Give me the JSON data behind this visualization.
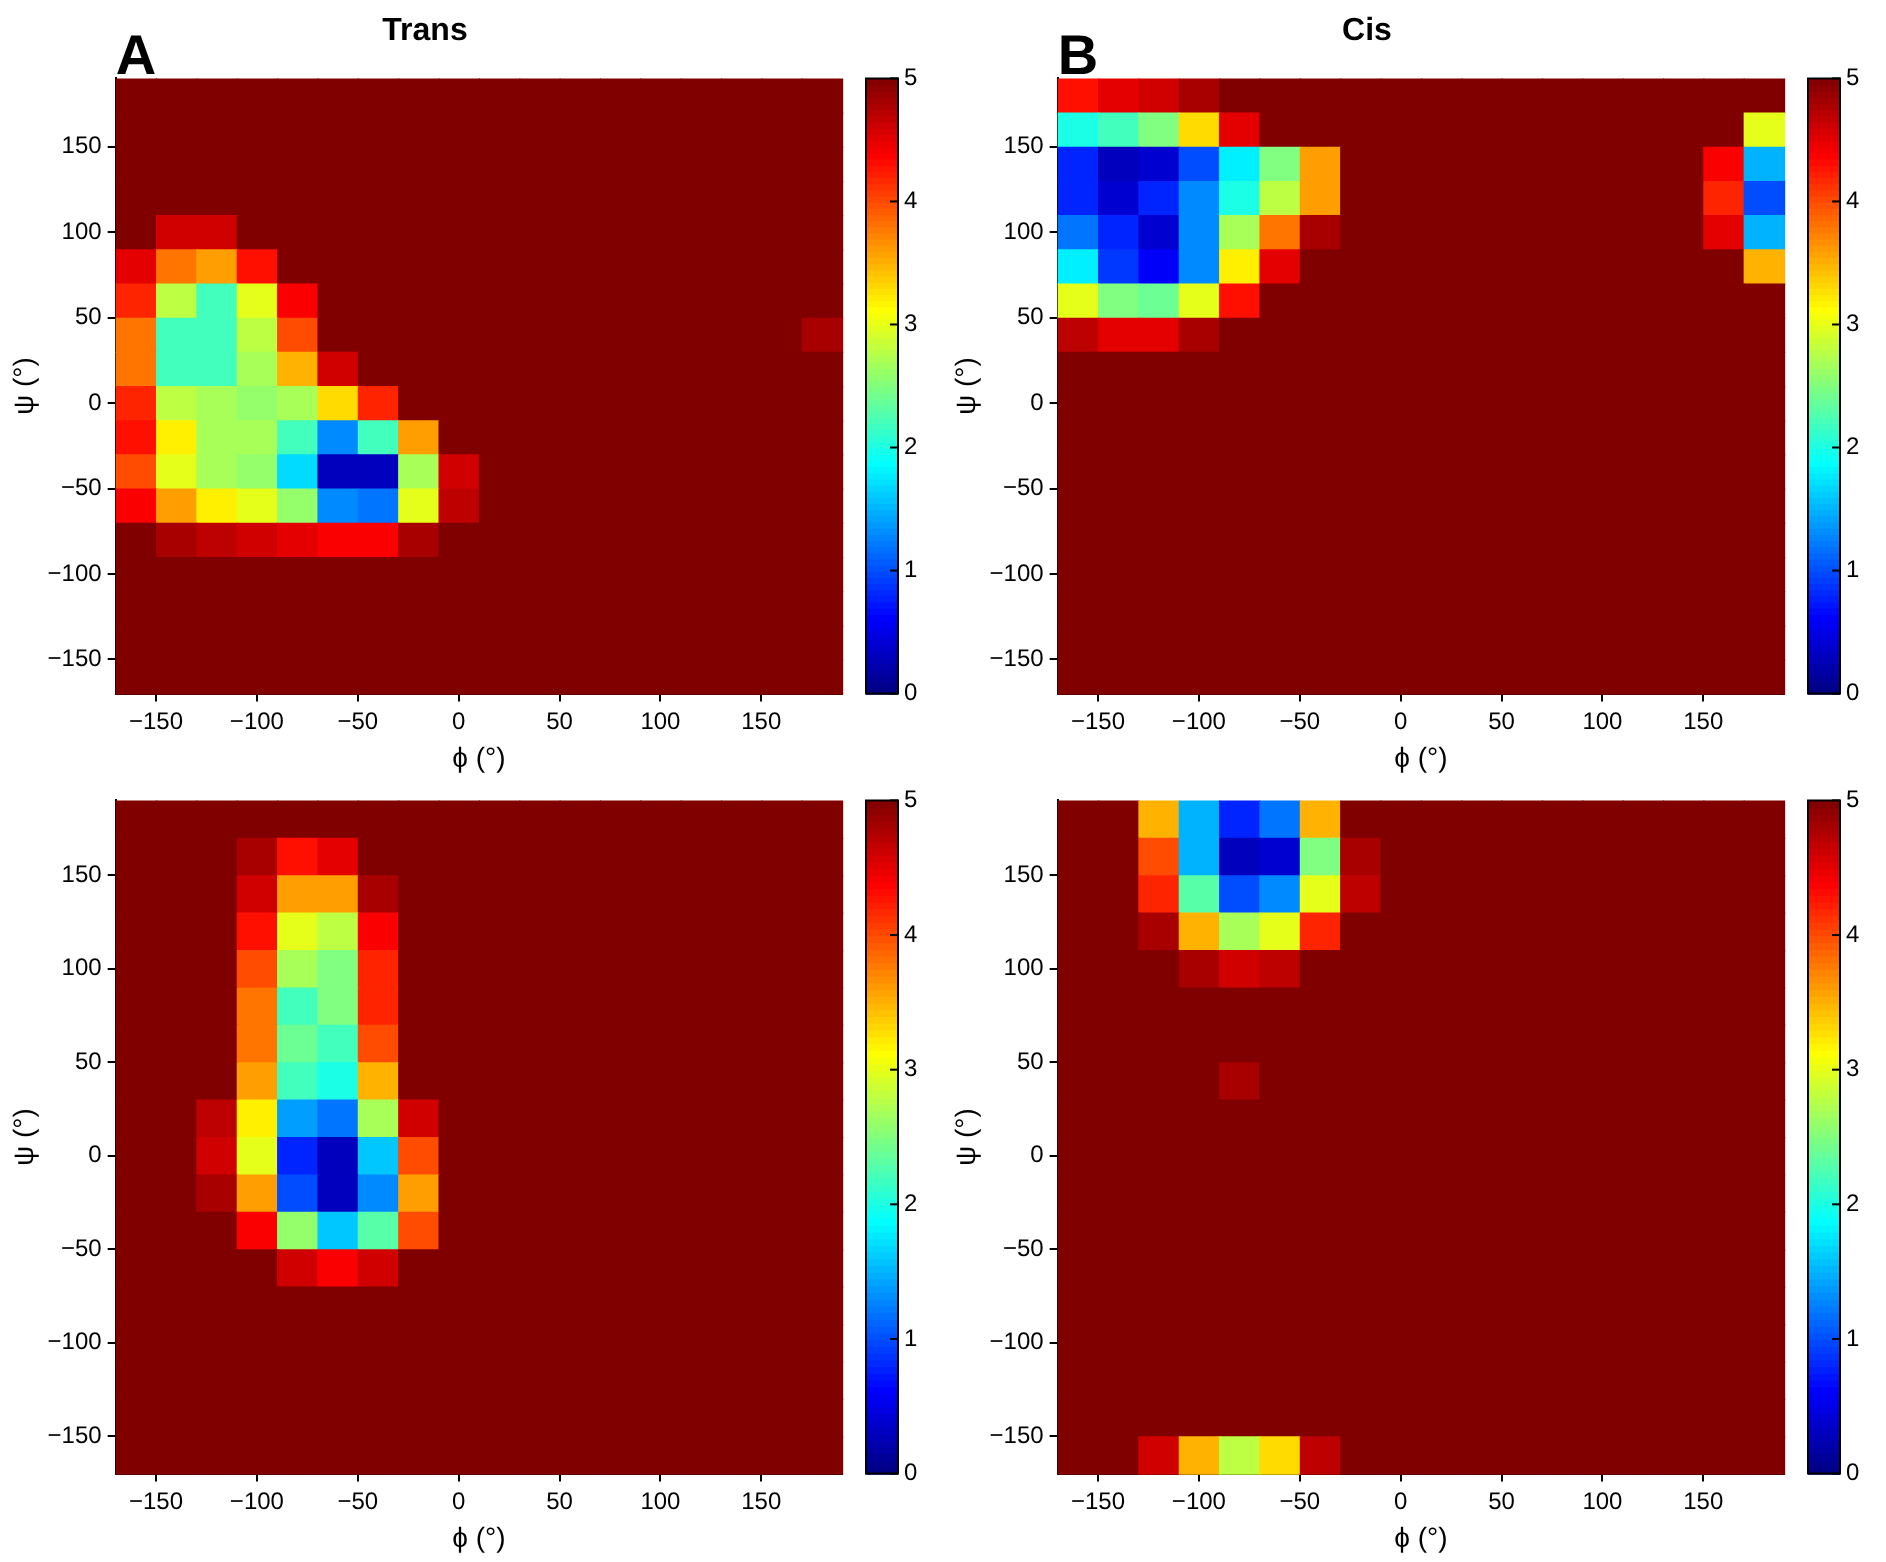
{
  "chart_data": [
    {
      "type": "heatmap",
      "title": "Trans",
      "xlabel": "ϕ (°)",
      "ylabel": "ψ (°)",
      "annotations": [
        "A"
      ],
      "x": [
        -160,
        -140,
        -120,
        -100,
        -80,
        -60,
        -40,
        -20,
        0,
        20,
        40,
        60,
        80,
        100,
        120,
        140,
        160,
        180
      ],
      "y": [
        180,
        160,
        140,
        120,
        100,
        80,
        60,
        40,
        20,
        0,
        -20,
        -40,
        -60,
        -80,
        -100,
        -120,
        -140,
        -160
      ],
      "xlim": [
        -170,
        190
      ],
      "ylim": [
        -170,
        190
      ],
      "xticks": [
        -150,
        -100,
        -50,
        0,
        50,
        100,
        150
      ],
      "yticks": [
        -150,
        -100,
        -50,
        0,
        50,
        100,
        150
      ],
      "clim": [
        0,
        5
      ],
      "cticks": [
        0,
        1,
        2,
        3,
        4,
        5
      ],
      "cells": [
        [
          5,
          5,
          5,
          5,
          5,
          5,
          5,
          5,
          5,
          5,
          5,
          5,
          5,
          5,
          5,
          5,
          5,
          5
        ],
        [
          5,
          5,
          5,
          5,
          5,
          5,
          5,
          5,
          5,
          5,
          5,
          5,
          5,
          5,
          5,
          5,
          5,
          5
        ],
        [
          5,
          5,
          5,
          5,
          5,
          5,
          5,
          5,
          5,
          5,
          5,
          5,
          5,
          5,
          5,
          5,
          5,
          5
        ],
        [
          5,
          5,
          5,
          5,
          5,
          5,
          5,
          5,
          5,
          5,
          5,
          5,
          5,
          5,
          5,
          5,
          5,
          5
        ],
        [
          5,
          4.6,
          4.6,
          5,
          5,
          5,
          5,
          5,
          5,
          5,
          5,
          5,
          5,
          5,
          5,
          5,
          5,
          5
        ],
        [
          4.5,
          3.8,
          3.6,
          4.3,
          5,
          5,
          5,
          5,
          5,
          5,
          5,
          5,
          5,
          5,
          5,
          5,
          5,
          5
        ],
        [
          4.2,
          2.8,
          2.2,
          3,
          4.4,
          5,
          5,
          5,
          5,
          5,
          5,
          5,
          5,
          5,
          5,
          5,
          5,
          5
        ],
        [
          3.8,
          2.2,
          2.2,
          2.8,
          4,
          5,
          5,
          5,
          5,
          5,
          5,
          5,
          5,
          5,
          5,
          5,
          5,
          4.8
        ],
        [
          3.8,
          2.2,
          2.2,
          2.7,
          3.5,
          4.6,
          5,
          5,
          5,
          5,
          5,
          5,
          5,
          5,
          5,
          5,
          5,
          5
        ],
        [
          4.2,
          2.8,
          2.7,
          2.6,
          2.7,
          3.3,
          4.2,
          5,
          5,
          5,
          5,
          5,
          5,
          5,
          5,
          5,
          5,
          5
        ],
        [
          4.3,
          3.2,
          2.7,
          2.7,
          2.2,
          1.3,
          2.2,
          3.6,
          5,
          5,
          5,
          5,
          5,
          5,
          5,
          5,
          5,
          5
        ],
        [
          4,
          3,
          2.7,
          2.6,
          1.7,
          0.3,
          0.3,
          2.7,
          4.6,
          5,
          5,
          5,
          5,
          5,
          5,
          5,
          5,
          5
        ],
        [
          4.4,
          3.6,
          3.2,
          3,
          2.6,
          1.3,
          1.2,
          3,
          4.7,
          5,
          5,
          5,
          5,
          5,
          5,
          5,
          5,
          5
        ],
        [
          5,
          4.8,
          4.7,
          4.6,
          4.5,
          4.4,
          4.4,
          4.8,
          5,
          5,
          5,
          5,
          5,
          5,
          5,
          5,
          5,
          5
        ],
        [
          5,
          5,
          5,
          5,
          5,
          5,
          5,
          5,
          5,
          5,
          5,
          5,
          5,
          5,
          5,
          5,
          5,
          5
        ],
        [
          5,
          5,
          5,
          5,
          5,
          5,
          5,
          5,
          5,
          5,
          5,
          5,
          5,
          5,
          5,
          5,
          5,
          5
        ],
        [
          5,
          5,
          5,
          5,
          5,
          5,
          5,
          5,
          5,
          5,
          5,
          5,
          5,
          5,
          5,
          5,
          5,
          5
        ],
        [
          5,
          5,
          5,
          5,
          5,
          5,
          5,
          5,
          5,
          5,
          5,
          5,
          5,
          5,
          5,
          5,
          5,
          5
        ]
      ]
    },
    {
      "type": "heatmap",
      "title": "Cis",
      "xlabel": "ϕ (°)",
      "ylabel": "ψ (°)",
      "annotations": [
        "B"
      ],
      "x": [
        -160,
        -140,
        -120,
        -100,
        -80,
        -60,
        -40,
        -20,
        0,
        20,
        40,
        60,
        80,
        100,
        120,
        140,
        160,
        180
      ],
      "y": [
        180,
        160,
        140,
        120,
        100,
        80,
        60,
        40,
        20,
        0,
        -20,
        -40,
        -60,
        -80,
        -100,
        -120,
        -140,
        -160
      ],
      "xlim": [
        -170,
        190
      ],
      "ylim": [
        -170,
        190
      ],
      "xticks": [
        -150,
        -100,
        -50,
        0,
        50,
        100,
        150
      ],
      "yticks": [
        -150,
        -100,
        -50,
        0,
        50,
        100,
        150
      ],
      "clim": [
        0,
        5
      ],
      "cticks": [
        0,
        1,
        2,
        3,
        4,
        5
      ],
      "cells": [
        [
          4.3,
          4.5,
          4.6,
          4.8,
          5,
          5,
          5,
          5,
          5,
          5,
          5,
          5,
          5,
          5,
          5,
          5,
          5,
          5
        ],
        [
          2,
          2.2,
          2.5,
          3.3,
          4.5,
          5,
          5,
          5,
          5,
          5,
          5,
          5,
          5,
          5,
          5,
          5,
          5,
          3
        ],
        [
          0.8,
          0.3,
          0.4,
          1,
          1.8,
          2.5,
          3.6,
          5,
          5,
          5,
          5,
          5,
          5,
          5,
          5,
          5,
          4.4,
          1.5
        ],
        [
          0.8,
          0.4,
          0.8,
          1.3,
          2,
          2.8,
          3.6,
          5,
          5,
          5,
          5,
          5,
          5,
          5,
          5,
          5,
          4.2,
          1
        ],
        [
          1.2,
          0.8,
          0.4,
          1.3,
          2.7,
          3.8,
          4.8,
          5,
          5,
          5,
          5,
          5,
          5,
          5,
          5,
          5,
          4.5,
          1.5
        ],
        [
          1.8,
          0.9,
          0.6,
          1.3,
          3.2,
          4.5,
          5,
          5,
          5,
          5,
          5,
          5,
          5,
          5,
          5,
          5,
          5,
          3.5
        ],
        [
          3,
          2.5,
          2.4,
          3,
          4.3,
          5,
          5,
          5,
          5,
          5,
          5,
          5,
          5,
          5,
          5,
          5,
          5,
          5
        ],
        [
          4.7,
          4.5,
          4.5,
          4.8,
          5,
          5,
          5,
          5,
          5,
          5,
          5,
          5,
          5,
          5,
          5,
          5,
          5,
          5
        ],
        [
          5,
          5,
          5,
          5,
          5,
          5,
          5,
          5,
          5,
          5,
          5,
          5,
          5,
          5,
          5,
          5,
          5,
          5
        ],
        [
          5,
          5,
          5,
          5,
          5,
          5,
          5,
          5,
          5,
          5,
          5,
          5,
          5,
          5,
          5,
          5,
          5,
          5
        ],
        [
          5,
          5,
          5,
          5,
          5,
          5,
          5,
          5,
          5,
          5,
          5,
          5,
          5,
          5,
          5,
          5,
          5,
          5
        ],
        [
          5,
          5,
          5,
          5,
          5,
          5,
          5,
          5,
          5,
          5,
          5,
          5,
          5,
          5,
          5,
          5,
          5,
          5
        ],
        [
          5,
          5,
          5,
          5,
          5,
          5,
          5,
          5,
          5,
          5,
          5,
          5,
          5,
          5,
          5,
          5,
          5,
          5
        ],
        [
          5,
          5,
          5,
          5,
          5,
          5,
          5,
          5,
          5,
          5,
          5,
          5,
          5,
          5,
          5,
          5,
          5,
          5
        ],
        [
          5,
          5,
          5,
          5,
          5,
          5,
          5,
          5,
          5,
          5,
          5,
          5,
          5,
          5,
          5,
          5,
          5,
          5
        ],
        [
          5,
          5,
          5,
          5,
          5,
          5,
          5,
          5,
          5,
          5,
          5,
          5,
          5,
          5,
          5,
          5,
          5,
          5
        ],
        [
          5,
          5,
          5,
          5,
          5,
          5,
          5,
          5,
          5,
          5,
          5,
          5,
          5,
          5,
          5,
          5,
          5,
          5
        ],
        [
          5,
          5,
          5,
          5,
          5,
          5,
          5,
          5,
          5,
          5,
          5,
          5,
          5,
          5,
          5,
          5,
          5,
          5
        ]
      ]
    },
    {
      "type": "heatmap",
      "xlabel": "ϕ (°)",
      "ylabel": "ψ (°)",
      "x": [
        -160,
        -140,
        -120,
        -100,
        -80,
        -60,
        -40,
        -20,
        0,
        20,
        40,
        60,
        80,
        100,
        120,
        140,
        160,
        180
      ],
      "y": [
        180,
        160,
        140,
        120,
        100,
        80,
        60,
        40,
        20,
        0,
        -20,
        -40,
        -60,
        -80,
        -100,
        -120,
        -140,
        -160
      ],
      "xlim": [
        -170,
        190
      ],
      "ylim": [
        -170,
        190
      ],
      "xticks": [
        -150,
        -100,
        -50,
        0,
        50,
        100,
        150
      ],
      "yticks": [
        -150,
        -100,
        -50,
        0,
        50,
        100,
        150
      ],
      "clim": [
        0,
        5
      ],
      "cticks": [
        0,
        1,
        2,
        3,
        4,
        5
      ],
      "cells": [
        [
          5,
          5,
          5,
          5,
          5,
          5,
          5,
          5,
          5,
          5,
          5,
          5,
          5,
          5,
          5,
          5,
          5,
          5
        ],
        [
          5,
          5,
          5,
          4.8,
          4.3,
          4.5,
          5,
          5,
          5,
          5,
          5,
          5,
          5,
          5,
          5,
          5,
          5,
          5
        ],
        [
          5,
          5,
          5,
          4.6,
          3.6,
          3.6,
          4.8,
          5,
          5,
          5,
          5,
          5,
          5,
          5,
          5,
          5,
          5,
          5
        ],
        [
          5,
          5,
          5,
          4.3,
          3,
          2.8,
          4.4,
          5,
          5,
          5,
          5,
          5,
          5,
          5,
          5,
          5,
          5,
          5
        ],
        [
          5,
          5,
          5,
          4,
          2.7,
          2.5,
          4.2,
          5,
          5,
          5,
          5,
          5,
          5,
          5,
          5,
          5,
          5,
          5
        ],
        [
          5,
          5,
          5,
          3.8,
          2.2,
          2.5,
          4.2,
          5,
          5,
          5,
          5,
          5,
          5,
          5,
          5,
          5,
          5,
          5
        ],
        [
          5,
          5,
          5,
          3.8,
          2.4,
          2.2,
          4,
          5,
          5,
          5,
          5,
          5,
          5,
          5,
          5,
          5,
          5,
          5
        ],
        [
          5,
          5,
          5,
          3.6,
          2.2,
          2,
          3.5,
          5,
          5,
          5,
          5,
          5,
          5,
          5,
          5,
          5,
          5,
          5
        ],
        [
          5,
          5,
          4.7,
          3.2,
          1.4,
          1.2,
          2.7,
          4.6,
          5,
          5,
          5,
          5,
          5,
          5,
          5,
          5,
          5,
          5
        ],
        [
          5,
          5,
          4.6,
          3,
          0.8,
          0.3,
          1.6,
          4,
          5,
          5,
          5,
          5,
          5,
          5,
          5,
          5,
          5,
          5
        ],
        [
          5,
          5,
          4.8,
          3.6,
          1,
          0.3,
          1.3,
          3.6,
          5,
          5,
          5,
          5,
          5,
          5,
          5,
          5,
          5,
          5
        ],
        [
          5,
          5,
          5,
          4.4,
          2.6,
          1.6,
          2.3,
          4,
          5,
          5,
          5,
          5,
          5,
          5,
          5,
          5,
          5,
          5
        ],
        [
          5,
          5,
          5,
          5,
          4.6,
          4.4,
          4.6,
          5,
          5,
          5,
          5,
          5,
          5,
          5,
          5,
          5,
          5,
          5
        ],
        [
          5,
          5,
          5,
          5,
          5,
          5,
          5,
          5,
          5,
          5,
          5,
          5,
          5,
          5,
          5,
          5,
          5,
          5
        ],
        [
          5,
          5,
          5,
          5,
          5,
          5,
          5,
          5,
          5,
          5,
          5,
          5,
          5,
          5,
          5,
          5,
          5,
          5
        ],
        [
          5,
          5,
          5,
          5,
          5,
          5,
          5,
          5,
          5,
          5,
          5,
          5,
          5,
          5,
          5,
          5,
          5,
          5
        ],
        [
          5,
          5,
          5,
          5,
          5,
          5,
          5,
          5,
          5,
          5,
          5,
          5,
          5,
          5,
          5,
          5,
          5,
          5
        ],
        [
          5,
          5,
          5,
          5,
          5,
          5,
          5,
          5,
          5,
          5,
          5,
          5,
          5,
          5,
          5,
          5,
          5,
          5
        ]
      ]
    },
    {
      "type": "heatmap",
      "xlabel": "ϕ (°)",
      "ylabel": "ψ (°)",
      "x": [
        -160,
        -140,
        -120,
        -100,
        -80,
        -60,
        -40,
        -20,
        0,
        20,
        40,
        60,
        80,
        100,
        120,
        140,
        160,
        180
      ],
      "y": [
        180,
        160,
        140,
        120,
        100,
        80,
        60,
        40,
        20,
        0,
        -20,
        -40,
        -60,
        -80,
        -100,
        -120,
        -140,
        -160
      ],
      "xlim": [
        -170,
        190
      ],
      "ylim": [
        -170,
        190
      ],
      "xticks": [
        -150,
        -100,
        -50,
        0,
        50,
        100,
        150
      ],
      "yticks": [
        -150,
        -100,
        -50,
        0,
        50,
        100,
        150
      ],
      "clim": [
        0,
        5
      ],
      "cticks": [
        0,
        1,
        2,
        3,
        4,
        5
      ],
      "cells": [
        [
          5,
          5,
          3.5,
          1.5,
          0.8,
          1.2,
          3.5,
          5,
          5,
          5,
          5,
          5,
          5,
          5,
          5,
          5,
          5,
          5
        ],
        [
          5,
          5,
          4,
          1.5,
          0.3,
          0.4,
          2.5,
          4.8,
          5,
          5,
          5,
          5,
          5,
          5,
          5,
          5,
          5,
          5
        ],
        [
          5,
          5,
          4.2,
          2.3,
          1,
          1.3,
          3,
          4.7,
          5,
          5,
          5,
          5,
          5,
          5,
          5,
          5,
          5,
          5
        ],
        [
          5,
          5,
          4.8,
          3.5,
          2.7,
          3,
          4.2,
          5,
          5,
          5,
          5,
          5,
          5,
          5,
          5,
          5,
          5,
          5
        ],
        [
          5,
          5,
          5,
          4.8,
          4.6,
          4.7,
          5,
          5,
          5,
          5,
          5,
          5,
          5,
          5,
          5,
          5,
          5,
          5
        ],
        [
          5,
          5,
          5,
          5,
          5,
          5,
          5,
          5,
          5,
          5,
          5,
          5,
          5,
          5,
          5,
          5,
          5,
          5
        ],
        [
          5,
          5,
          5,
          5,
          5,
          5,
          5,
          5,
          5,
          5,
          5,
          5,
          5,
          5,
          5,
          5,
          5,
          5
        ],
        [
          5,
          5,
          5,
          5,
          4.8,
          5,
          5,
          5,
          5,
          5,
          5,
          5,
          5,
          5,
          5,
          5,
          5,
          5
        ],
        [
          5,
          5,
          5,
          5,
          5,
          5,
          5,
          5,
          5,
          5,
          5,
          5,
          5,
          5,
          5,
          5,
          5,
          5
        ],
        [
          5,
          5,
          5,
          5,
          5,
          5,
          5,
          5,
          5,
          5,
          5,
          5,
          5,
          5,
          5,
          5,
          5,
          5
        ],
        [
          5,
          5,
          5,
          5,
          5,
          5,
          5,
          5,
          5,
          5,
          5,
          5,
          5,
          5,
          5,
          5,
          5,
          5
        ],
        [
          5,
          5,
          5,
          5,
          5,
          5,
          5,
          5,
          5,
          5,
          5,
          5,
          5,
          5,
          5,
          5,
          5,
          5
        ],
        [
          5,
          5,
          5,
          5,
          5,
          5,
          5,
          5,
          5,
          5,
          5,
          5,
          5,
          5,
          5,
          5,
          5,
          5
        ],
        [
          5,
          5,
          5,
          5,
          5,
          5,
          5,
          5,
          5,
          5,
          5,
          5,
          5,
          5,
          5,
          5,
          5,
          5
        ],
        [
          5,
          5,
          5,
          5,
          5,
          5,
          5,
          5,
          5,
          5,
          5,
          5,
          5,
          5,
          5,
          5,
          5,
          5
        ],
        [
          5,
          5,
          5,
          5,
          5,
          5,
          5,
          5,
          5,
          5,
          5,
          5,
          5,
          5,
          5,
          5,
          5,
          5
        ],
        [
          5,
          5,
          5,
          5,
          5,
          5,
          5,
          5,
          5,
          5,
          5,
          5,
          5,
          5,
          5,
          5,
          5,
          5
        ],
        [
          5,
          5,
          4.6,
          3.5,
          2.8,
          3.3,
          4.7,
          5,
          5,
          5,
          5,
          5,
          5,
          5,
          5,
          5,
          5,
          5
        ]
      ]
    }
  ]
}
